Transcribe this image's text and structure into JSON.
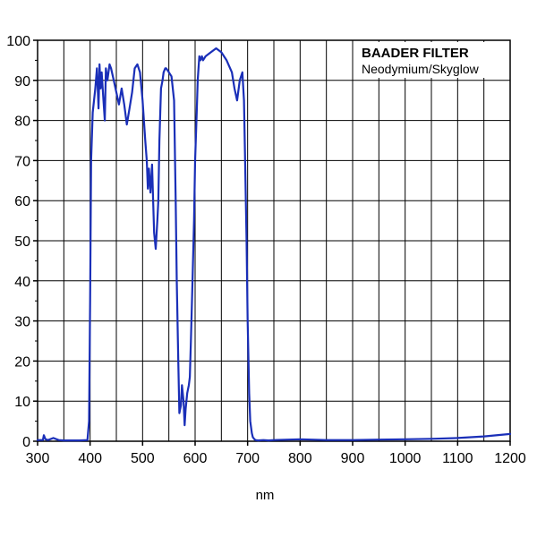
{
  "chart_data": {
    "type": "line",
    "title": "BAADER FILTER",
    "subtitle": "Neodymium/Skyglow",
    "xlabel": "nm",
    "ylabel": "",
    "xlim": [
      300,
      1200
    ],
    "ylim": [
      0,
      100
    ],
    "x_ticks": [
      300,
      400,
      500,
      600,
      700,
      800,
      900,
      1000,
      1100,
      1200
    ],
    "y_ticks": [
      0,
      10,
      20,
      30,
      40,
      50,
      60,
      70,
      80,
      90,
      100
    ],
    "grid": true,
    "legend_position": "top-right",
    "series_color": "#1a2fb8",
    "series": [
      {
        "name": "",
        "x": [
          300,
          310,
          312,
          315,
          320,
          330,
          340,
          350,
          360,
          380,
          395,
          398,
          400,
          402,
          405,
          410,
          413,
          416,
          418,
          420,
          422,
          425,
          428,
          430,
          433,
          437,
          440,
          445,
          450,
          455,
          460,
          465,
          470,
          475,
          480,
          485,
          490,
          495,
          500,
          505,
          508,
          510,
          512,
          515,
          518,
          520,
          522,
          525,
          528,
          530,
          532,
          535,
          538,
          540,
          543,
          545,
          550,
          555,
          560,
          563,
          565,
          568,
          570,
          573,
          575,
          578,
          580,
          582,
          585,
          588,
          590,
          592,
          595,
          598,
          600,
          603,
          605,
          608,
          610,
          613,
          615,
          620,
          630,
          640,
          650,
          660,
          670,
          675,
          680,
          685,
          690,
          693,
          695,
          698,
          700,
          703,
          705,
          708,
          710,
          713,
          715,
          720,
          730,
          740,
          750,
          800,
          850,
          900,
          950,
          1000,
          1050,
          1100,
          1150,
          1200
        ],
        "y": [
          0.3,
          0.3,
          1.5,
          0.5,
          0.3,
          0.8,
          0.3,
          0.2,
          0.2,
          0.2,
          0.3,
          5,
          35,
          70,
          82,
          88,
          93,
          83,
          94,
          88,
          92,
          86,
          80,
          93,
          90,
          94,
          93,
          90,
          87,
          84,
          88,
          84,
          79,
          83,
          87,
          93,
          94,
          92,
          85,
          75,
          70,
          63,
          68,
          62,
          69,
          60,
          52,
          48,
          55,
          60,
          75,
          88,
          90,
          92,
          93,
          93,
          92,
          91,
          85,
          60,
          40,
          20,
          7,
          9,
          14,
          10,
          4,
          8,
          12,
          14,
          16,
          25,
          40,
          55,
          70,
          82,
          90,
          96,
          95,
          96,
          95,
          96,
          97,
          98,
          97,
          95,
          92,
          88,
          85,
          90,
          92,
          85,
          72,
          50,
          30,
          12,
          5,
          2,
          1,
          0.5,
          0.3,
          0.2,
          0.3,
          0.2,
          0.3,
          0.5,
          0.3,
          0.3,
          0.4,
          0.5,
          0.6,
          0.8,
          1.2,
          1.8
        ]
      }
    ]
  }
}
